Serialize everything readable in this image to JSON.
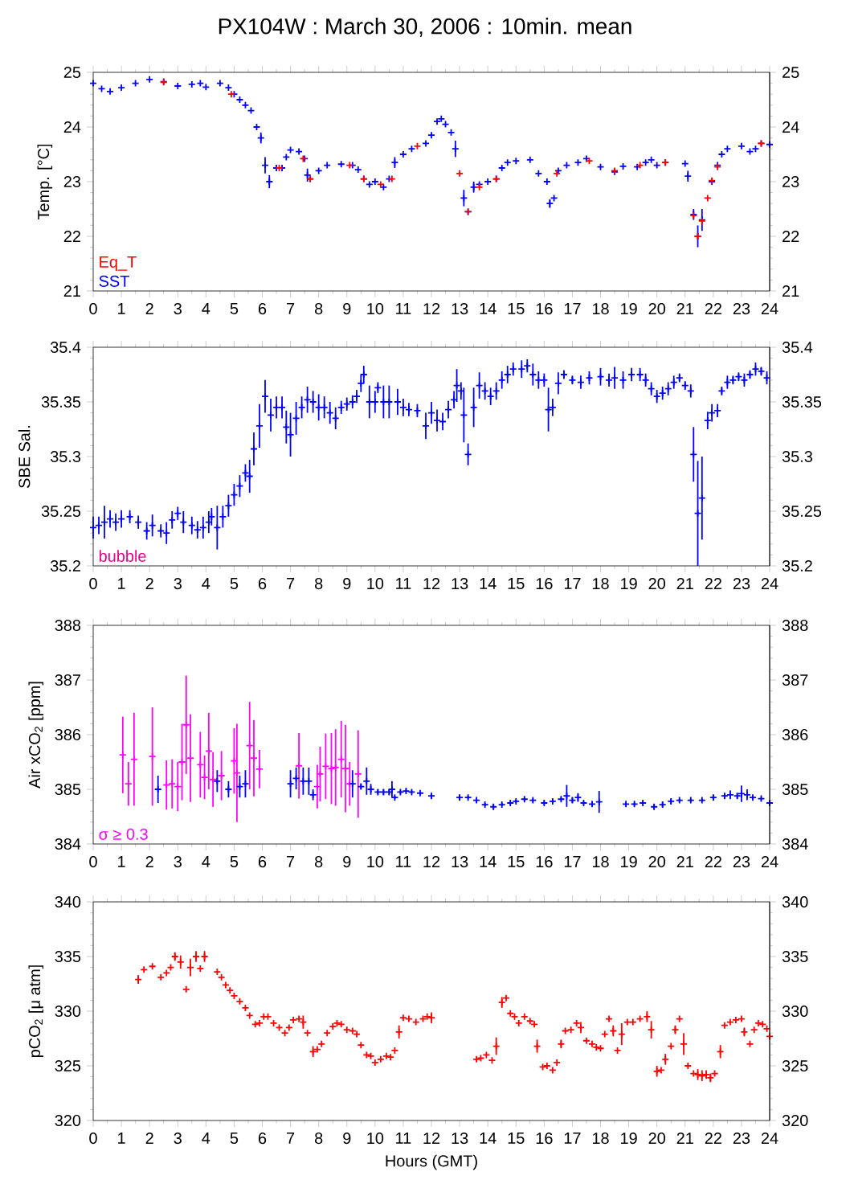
{
  "chart_data": [
    {
      "type": "scatter",
      "title": "PX104W : March 30, 2006 : 10min. mean",
      "ylabel": "Temp. [°C]",
      "marker": "cross",
      "legend": "bottom left",
      "xlim": [
        0,
        24
      ],
      "xticks": [
        0,
        1,
        2,
        3,
        4,
        5,
        6,
        7,
        8,
        9,
        10,
        11,
        12,
        13,
        14,
        15,
        16,
        17,
        18,
        19,
        20,
        21,
        22,
        23,
        24
      ],
      "ylim": [
        21,
        25
      ],
      "yticks": [
        21,
        22,
        23,
        24,
        25
      ],
      "y2lim": [
        21,
        25
      ],
      "y2ticks": [
        21,
        22,
        23,
        24,
        25
      ],
      "series": [
        {
          "name": "Eq_T",
          "color": "#ff0000",
          "x": [
            2.5,
            4.9,
            6.6,
            7.45,
            7.7,
            9.1,
            9.6,
            10.2,
            10.6,
            11.5,
            13.0,
            13.3,
            13.7,
            14.3,
            16.45,
            17.6,
            18.5,
            19.4,
            20.3,
            21.3,
            21.45,
            21.6,
            21.8,
            21.95,
            22.15,
            23.7
          ],
          "values": [
            24.82,
            24.6,
            23.25,
            23.42,
            23.05,
            23.3,
            23.05,
            22.95,
            23.05,
            23.65,
            23.15,
            22.45,
            22.9,
            23.05,
            23.15,
            23.38,
            23.2,
            23.3,
            23.35,
            22.38,
            22.0,
            22.28,
            22.7,
            23.02,
            23.27,
            23.7
          ]
        },
        {
          "name": "SST",
          "color": "#0000ff",
          "x": [
            0,
            0.3,
            0.6,
            1,
            1.5,
            2,
            2.5,
            3,
            3.5,
            3.8,
            4,
            4.5,
            4.8,
            5,
            5.2,
            5.4,
            5.6,
            5.8,
            5.95,
            6.1,
            6.25,
            6.5,
            6.7,
            6.85,
            7,
            7.3,
            7.5,
            7.6,
            7.7,
            8,
            8.3,
            8.8,
            9.2,
            9.4,
            9.6,
            9.8,
            10,
            10.3,
            10.5,
            10.7,
            11,
            11.3,
            11.8,
            12,
            12.2,
            12.35,
            12.5,
            12.7,
            12.85,
            13,
            13.15,
            13.3,
            13.5,
            13.7,
            14,
            14.3,
            14.5,
            14.7,
            15,
            15.5,
            15.8,
            16.1,
            16.2,
            16.35,
            16.5,
            16.8,
            17.2,
            17.5,
            18,
            18.5,
            18.8,
            19.3,
            19.6,
            19.8,
            20,
            20.3,
            21,
            21.1,
            21.3,
            21.45,
            21.6,
            21.8,
            21.95,
            22.15,
            22.3,
            22.5,
            23,
            23.3,
            23.5,
            23.7,
            24
          ],
          "values": [
            24.8,
            24.7,
            24.65,
            24.72,
            24.8,
            24.87,
            24.83,
            24.75,
            24.78,
            24.8,
            24.73,
            24.8,
            24.72,
            24.6,
            24.5,
            24.4,
            24.3,
            24.0,
            23.8,
            23.3,
            23.0,
            23.25,
            23.25,
            23.45,
            23.58,
            23.55,
            23.42,
            23.12,
            23.05,
            23.2,
            23.3,
            23.32,
            23.3,
            23.22,
            23.05,
            22.95,
            23.0,
            22.9,
            23.05,
            23.35,
            23.5,
            23.6,
            23.7,
            23.85,
            24.1,
            24.15,
            24.05,
            23.9,
            23.6,
            null,
            22.7,
            22.45,
            22.9,
            22.95,
            23.0,
            23.05,
            23.25,
            23.35,
            23.38,
            23.4,
            23.15,
            23.0,
            22.6,
            22.7,
            23.2,
            23.3,
            23.35,
            23.42,
            23.27,
            23.18,
            23.28,
            23.27,
            23.35,
            23.4,
            23.3,
            23.35,
            23.33,
            23.1,
            22.4,
            22.0,
            22.3,
            null,
            23.0,
            23.3,
            23.5,
            23.6,
            23.65,
            23.55,
            23.6,
            23.7,
            23.68
          ],
          "errors": [
            null,
            null,
            null,
            null,
            null,
            null,
            null,
            null,
            null,
            null,
            null,
            null,
            null,
            null,
            null,
            null,
            null,
            null,
            0.1,
            0.15,
            0.12,
            null,
            null,
            null,
            null,
            null,
            null,
            0.12,
            null,
            null,
            null,
            null,
            null,
            null,
            null,
            null,
            null,
            null,
            null,
            0.1,
            null,
            null,
            null,
            null,
            null,
            null,
            null,
            null,
            0.15,
            null,
            0.15,
            null,
            0.1,
            null,
            null,
            null,
            null,
            null,
            null,
            null,
            null,
            null,
            0.08,
            null,
            null,
            null,
            null,
            null,
            null,
            null,
            null,
            null,
            null,
            null,
            null,
            null,
            null,
            0.1,
            0.1,
            0.2,
            0.2,
            null,
            null,
            null,
            null,
            null,
            null,
            null,
            null,
            null,
            null
          ]
        }
      ]
    },
    {
      "type": "scatter",
      "ylabel": "SBE Sal.",
      "marker": "cross",
      "annotations": [
        "bubble"
      ],
      "xlim": [
        0,
        24
      ],
      "xticks": [
        0,
        1,
        2,
        3,
        4,
        5,
        6,
        7,
        8,
        9,
        10,
        11,
        12,
        13,
        14,
        15,
        16,
        17,
        18,
        19,
        20,
        21,
        22,
        23,
        24
      ],
      "ylim": [
        35.2,
        35.4
      ],
      "yticks": [
        35.2,
        35.25,
        35.3,
        35.35,
        35.4
      ],
      "y2lim": [
        35.2,
        35.4
      ],
      "y2ticks": [
        35.2,
        35.25,
        35.3,
        35.35,
        35.4
      ],
      "series": [
        {
          "color": "#0000ff",
          "x": [
            0,
            0.2,
            0.4,
            0.6,
            0.8,
            1,
            1.3,
            1.6,
            1.9,
            2.1,
            2.4,
            2.6,
            2.8,
            3,
            3.2,
            3.5,
            3.7,
            3.9,
            4.1,
            4.2,
            4.4,
            4.6,
            4.8,
            5,
            5.2,
            5.4,
            5.55,
            5.7,
            5.9,
            6.1,
            6.3,
            6.5,
            6.7,
            6.85,
            7,
            7.2,
            7.4,
            7.6,
            7.8,
            8,
            8.2,
            8.4,
            8.6,
            8.8,
            9,
            9.2,
            9.35,
            9.5,
            9.6,
            9.8,
            10,
            10.1,
            10.3,
            10.5,
            10.8,
            11,
            11.2,
            11.5,
            11.8,
            12,
            12.2,
            12.4,
            12.6,
            12.8,
            12.9,
            13.05,
            13.15,
            13.3,
            13.5,
            13.7,
            13.9,
            14.1,
            14.3,
            14.5,
            14.7,
            14.9,
            15.2,
            15.4,
            15.6,
            15.8,
            16,
            16.15,
            16.3,
            16.5,
            16.7,
            17,
            17.3,
            17.6,
            18,
            18.3,
            18.5,
            18.8,
            19.1,
            19.4,
            19.6,
            19.8,
            20,
            20.2,
            20.4,
            20.6,
            20.8,
            21,
            21.2,
            21.3,
            21.45,
            21.6,
            21.8,
            21.95,
            22.15,
            22.3,
            22.5,
            22.7,
            22.9,
            23.1,
            23.3,
            23.5,
            23.7,
            23.9
          ],
          "values": [
            35.235,
            35.237,
            35.24,
            35.243,
            35.24,
            35.243,
            35.245,
            35.24,
            35.232,
            35.237,
            35.232,
            35.23,
            35.242,
            35.248,
            35.24,
            35.237,
            35.233,
            35.235,
            35.24,
            35.245,
            35.235,
            35.245,
            35.255,
            35.265,
            35.273,
            35.285,
            35.282,
            35.307,
            35.328,
            35.355,
            35.338,
            35.345,
            35.345,
            35.327,
            35.32,
            35.335,
            35.345,
            35.352,
            35.35,
            35.345,
            35.345,
            35.34,
            35.335,
            35.345,
            35.348,
            35.35,
            35.355,
            35.367,
            35.375,
            35.35,
            35.35,
            35.363,
            35.35,
            35.35,
            35.35,
            35.345,
            35.343,
            35.342,
            35.328,
            35.34,
            35.333,
            35.332,
            35.343,
            35.352,
            35.365,
            35.36,
            35.338,
            35.302,
            35.345,
            35.365,
            35.36,
            35.355,
            35.36,
            35.37,
            35.375,
            35.38,
            35.38,
            35.383,
            35.375,
            35.37,
            35.37,
            35.343,
            35.345,
            35.367,
            35.375,
            35.37,
            35.368,
            35.372,
            35.373,
            35.37,
            35.372,
            35.37,
            35.375,
            35.375,
            35.37,
            35.362,
            35.355,
            35.358,
            35.362,
            35.368,
            35.372,
            35.365,
            35.36,
            35.302,
            35.248,
            35.262,
            35.333,
            35.34,
            35.342,
            35.36,
            35.368,
            35.37,
            35.373,
            35.37,
            35.375,
            35.38,
            35.378,
            35.372
          ],
          "errors": [
            0.01,
            0.008,
            0.015,
            0.008,
            0.008,
            0.008,
            0.006,
            0.006,
            0.008,
            0.01,
            0.006,
            0.01,
            0.008,
            0.006,
            0.01,
            0.008,
            0.008,
            0.01,
            0.01,
            0.008,
            0.02,
            0.01,
            0.01,
            0.01,
            0.01,
            0.008,
            0.015,
            0.015,
            0.02,
            0.015,
            0.015,
            0.01,
            0.01,
            0.015,
            0.02,
            0.015,
            0.01,
            0.012,
            0.01,
            0.012,
            0.01,
            0.01,
            0.01,
            0.006,
            0.006,
            0.006,
            0.006,
            0.008,
            0.008,
            0.015,
            0.01,
            0.005,
            0.015,
            0.015,
            0.012,
            0.008,
            0.006,
            0.006,
            0.012,
            0.01,
            0.01,
            0.008,
            0.008,
            0.008,
            0.015,
            0.008,
            0.025,
            0.01,
            0.018,
            0.012,
            0.008,
            0.008,
            0.008,
            0.008,
            0.008,
            0.006,
            0.008,
            0.006,
            0.01,
            0.008,
            0.006,
            0.02,
            0.008,
            0.01,
            0.004,
            0.004,
            0.006,
            0.006,
            0.008,
            0.006,
            0.01,
            0.008,
            0.006,
            0.006,
            0.006,
            0.006,
            0.006,
            0.006,
            0.006,
            0.006,
            0.004,
            0.004,
            0.006,
            0.025,
            0.048,
            0.038,
            0.008,
            0.008,
            0.006,
            0.004,
            0.006,
            0.004,
            0.004,
            0.006,
            0.004,
            0.006,
            0.004,
            0.006
          ]
        }
      ]
    },
    {
      "type": "scatter",
      "ylabel": "Air xCO$_{2}$ [ppm]",
      "marker": "cross",
      "legend": "bottom left",
      "xlim": [
        0,
        24
      ],
      "xticks": [
        0,
        1,
        2,
        3,
        4,
        5,
        6,
        7,
        8,
        9,
        10,
        11,
        12,
        13,
        14,
        15,
        16,
        17,
        18,
        19,
        20,
        21,
        22,
        23,
        24
      ],
      "ylim": [
        384,
        388
      ],
      "yticks": [
        384,
        385,
        386,
        387,
        388
      ],
      "y2lim": [
        384,
        388
      ],
      "y2ticks": [
        384,
        385,
        386,
        387,
        388
      ],
      "series": [
        {
          "color": "#0000ff",
          "x": [
            2.3,
            4.4,
            4.8,
            5.2,
            5.4,
            7.0,
            7.2,
            7.45,
            7.65,
            7.8,
            9.2,
            9.5,
            9.7,
            9.85,
            10.1,
            10.3,
            10.5,
            10.6,
            10.7,
            10.9,
            11.1,
            11.3,
            11.6,
            12,
            13,
            13.3,
            13.6,
            13.9,
            14.2,
            14.5,
            14.8,
            15,
            15.3,
            15.6,
            16,
            16.3,
            16.6,
            16.8,
            17,
            17.2,
            17.4,
            17.7,
            17.95,
            18.9,
            19.2,
            19.5,
            19.9,
            20.2,
            20.5,
            20.8,
            21.2,
            21.6,
            22,
            22.4,
            22.6,
            22.85,
            23,
            23.2,
            23.4,
            23.7,
            24
          ],
          "values": [
            385.0,
            385.15,
            385.0,
            385.05,
            385.1,
            385.1,
            385.2,
            385.15,
            385.15,
            384.9,
            385.1,
            385.05,
            385.15,
            385.0,
            384.95,
            384.95,
            384.95,
            385.0,
            384.85,
            384.95,
            384.97,
            384.95,
            384.93,
            384.88,
            384.85,
            384.85,
            384.8,
            384.72,
            384.68,
            384.72,
            384.75,
            384.78,
            384.82,
            384.8,
            384.75,
            384.78,
            384.82,
            384.88,
            384.8,
            384.85,
            384.75,
            384.73,
            384.77,
            384.73,
            384.73,
            384.75,
            384.68,
            384.72,
            384.78,
            384.8,
            384.8,
            384.8,
            384.85,
            384.88,
            384.9,
            384.88,
            384.92,
            384.9,
            384.85,
            384.83,
            384.75
          ],
          "errors": [
            0.25,
            0.2,
            0.15,
            0.2,
            0.25,
            0.25,
            0.2,
            0.25,
            0.25,
            0.1,
            0.25,
            0.05,
            0.25,
            0.1,
            0.05,
            0.05,
            0.05,
            0.15,
            0.03,
            0.03,
            0.03,
            0.03,
            0.03,
            0.05,
            0.05,
            0.03,
            0.03,
            0.03,
            0.05,
            0.03,
            0.03,
            0.03,
            0.03,
            0.03,
            0.03,
            0.03,
            0.03,
            0.2,
            0.05,
            0.08,
            0.03,
            0.03,
            0.2,
            0.03,
            0.03,
            0.03,
            0.05,
            0.05,
            0.05,
            0.03,
            0.03,
            0.03,
            0.05,
            0.05,
            0.08,
            0.05,
            0.15,
            0.1,
            0.03,
            0.03,
            0.03
          ]
        },
        {
          "name": "σ ≥ 0.3",
          "color": "#ff00ff",
          "x": [
            1.05,
            1.25,
            1.45,
            2.1,
            2.6,
            2.8,
            3,
            3.15,
            3.3,
            3.45,
            3.8,
            3.95,
            4.1,
            4.25,
            4.55,
            5,
            5.1,
            5.55,
            5.7,
            5.9,
            7.3,
            7.95,
            8.05,
            8.25,
            8.45,
            8.6,
            8.8,
            8.95,
            9.1,
            9.4
          ],
          "values": [
            385.63,
            385.1,
            385.55,
            385.6,
            385.08,
            385.1,
            385.05,
            385.5,
            386.18,
            385.57,
            385.45,
            385.22,
            385.7,
            385.18,
            385.25,
            385.52,
            385.3,
            385.8,
            385.57,
            385.37,
            385.43,
            385.05,
            385.28,
            385.42,
            385.38,
            385.4,
            385.55,
            385.38,
            385.1,
            385.28
          ],
          "errors": [
            0.7,
            0.4,
            0.85,
            0.9,
            0.45,
            0.45,
            0.45,
            0.7,
            0.9,
            0.8,
            0.6,
            0.4,
            0.7,
            0.5,
            0.45,
            0.6,
            0.9,
            0.8,
            0.7,
            0.35,
            0.6,
            0.4,
            0.5,
            0.6,
            0.65,
            0.7,
            0.7,
            0.8,
            0.4,
            0.8
          ]
        }
      ]
    },
    {
      "type": "scatter",
      "ylabel": "pCO$_{2}$ [μ atm]",
      "xlabel": "Hours (GMT)",
      "marker": "cross",
      "xlim": [
        0,
        24
      ],
      "xticks": [
        0,
        1,
        2,
        3,
        4,
        5,
        6,
        7,
        8,
        9,
        10,
        11,
        12,
        13,
        14,
        15,
        16,
        17,
        18,
        19,
        20,
        21,
        22,
        23,
        24
      ],
      "ylim": [
        320,
        340
      ],
      "yticks": [
        320,
        325,
        330,
        335,
        340
      ],
      "y2lim": [
        320,
        340
      ],
      "y2ticks": [
        320,
        325,
        330,
        335,
        340
      ],
      "series": [
        {
          "color": "#ff0000",
          "x": [
            1.6,
            1.8,
            2.1,
            2.4,
            2.6,
            2.75,
            2.9,
            3.1,
            3.3,
            3.45,
            3.65,
            3.8,
            3.95,
            4.4,
            4.55,
            4.7,
            4.85,
            5,
            5.2,
            5.4,
            5.55,
            5.75,
            5.9,
            6.05,
            6.2,
            6.4,
            6.6,
            6.8,
            6.95,
            7.1,
            7.3,
            7.45,
            7.6,
            7.8,
            7.95,
            8.1,
            8.3,
            8.5,
            8.65,
            8.8,
            9.0,
            9.2,
            9.35,
            9.5,
            9.7,
            9.85,
            10,
            10.2,
            10.4,
            10.55,
            10.7,
            10.85,
            11,
            11.2,
            11.45,
            11.7,
            11.85,
            12,
            13.6,
            13.75,
            13.95,
            14.15,
            14.3,
            14.5,
            14.65,
            14.8,
            14.95,
            15.1,
            15.3,
            15.5,
            15.65,
            15.75,
            15.95,
            16.1,
            16.3,
            16.45,
            16.6,
            16.75,
            16.95,
            17.15,
            17.3,
            17.5,
            17.7,
            17.85,
            18,
            18.15,
            18.3,
            18.45,
            18.6,
            18.75,
            18.95,
            19.15,
            19.4,
            19.65,
            19.8,
            20.0,
            20.15,
            20.3,
            20.5,
            20.65,
            20.8,
            20.95,
            21.1,
            21.3,
            21.45,
            21.6,
            21.75,
            21.9,
            22.05,
            22.25,
            22.4,
            22.6,
            22.8,
            23,
            23.1,
            23.3,
            23.45,
            23.6,
            23.75,
            23.9,
            24
          ],
          "values": [
            332.9,
            333.8,
            334.1,
            333.1,
            333.5,
            334.0,
            335.0,
            334.5,
            332,
            334,
            335,
            333.9,
            335,
            333.6,
            333.1,
            332.4,
            331.9,
            331.4,
            330.9,
            330.3,
            329.6,
            328.8,
            328.9,
            329.5,
            329.5,
            328.9,
            328.5,
            328.0,
            328.5,
            329.2,
            329.3,
            329.0,
            328.0,
            326.3,
            326.5,
            327.0,
            328.0,
            328.6,
            328.9,
            328.8,
            328.3,
            328.2,
            327.9,
            326.9,
            326.0,
            325.9,
            325.3,
            325.6,
            325.9,
            325.8,
            326.4,
            328.1,
            329.4,
            329.3,
            329.0,
            329.3,
            329.5,
            329.4,
            325.6,
            325.7,
            326.0,
            325.5,
            326.8,
            330.8,
            331.2,
            329.8,
            329.5,
            328.9,
            329.5,
            329.1,
            328.8,
            326.8,
            324.9,
            325.0,
            324.6,
            325.3,
            327.0,
            328.2,
            328.3,
            328.9,
            328.5,
            327.3,
            327.0,
            326.7,
            326.6,
            327.9,
            329.3,
            328.2,
            326.4,
            327.9,
            329.0,
            329.0,
            329.3,
            329.5,
            328.3,
            324.5,
            324.6,
            325.6,
            326.8,
            328.3,
            329.3,
            327.0,
            325.0,
            324.3,
            324.2,
            324.1,
            324.2,
            323.9,
            324.3,
            326.3,
            328.7,
            329.0,
            329.2,
            329.3,
            328.1,
            327.0,
            328.3,
            328.9,
            328.8,
            328.4,
            327.7
          ],
          "errors": [
            0.4,
            null,
            null,
            null,
            null,
            null,
            0.4,
            0.6,
            null,
            0.8,
            0.5,
            null,
            0.5,
            null,
            null,
            null,
            null,
            null,
            null,
            null,
            null,
            null,
            null,
            null,
            null,
            null,
            null,
            null,
            null,
            null,
            null,
            0.6,
            null,
            0.5,
            null,
            null,
            null,
            null,
            null,
            null,
            null,
            null,
            null,
            null,
            null,
            null,
            null,
            null,
            null,
            null,
            null,
            0.6,
            null,
            null,
            null,
            null,
            null,
            0.5,
            null,
            null,
            null,
            null,
            0.8,
            0.5,
            null,
            null,
            null,
            null,
            null,
            null,
            null,
            0.6,
            null,
            null,
            null,
            null,
            0.4,
            null,
            null,
            null,
            0.5,
            null,
            null,
            null,
            null,
            null,
            null,
            0.5,
            null,
            1.0,
            null,
            null,
            null,
            0.5,
            0.8,
            0.5,
            null,
            0.5,
            null,
            0.4,
            null,
            1.0,
            null,
            null,
            0.5,
            0.5,
            0.4,
            0.4,
            null,
            0.6,
            null,
            null,
            null,
            null,
            0.4,
            null,
            null,
            null,
            null,
            null,
            null
          ]
        }
      ]
    }
  ]
}
